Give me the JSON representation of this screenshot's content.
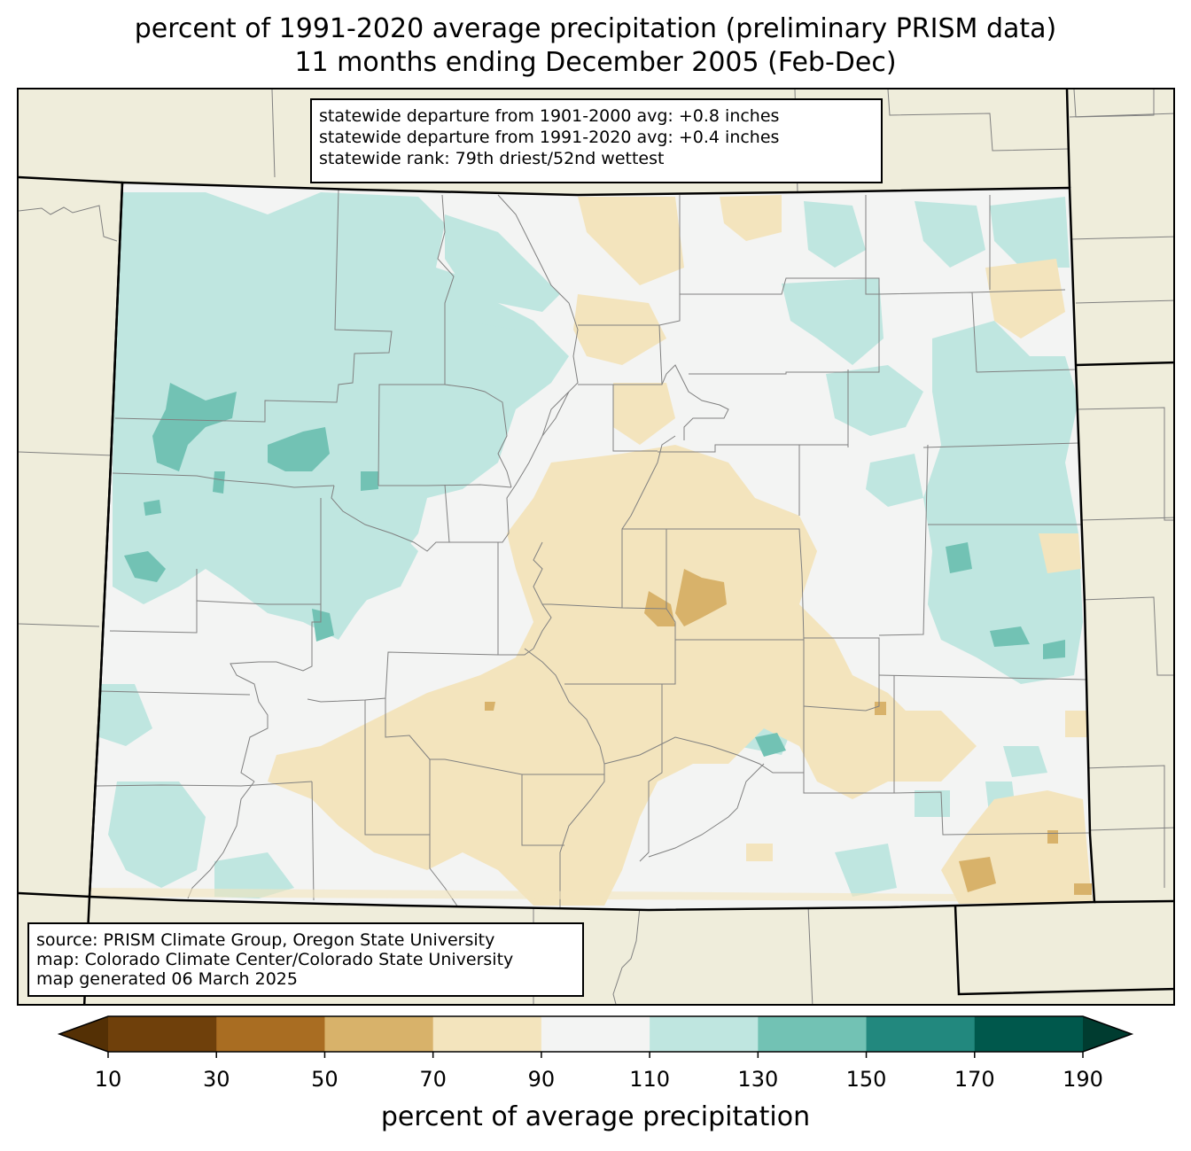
{
  "title_line1": "percent of 1991-2020 average precipitation (preliminary PRISM data)",
  "title_line2": "11 months ending December 2005 (Feb-Dec)",
  "stats": {
    "line1": "statewide departure from 1901-2000 avg: +0.8 inches",
    "line2": "statewide departure from 1991-2020 avg: +0.4 inches",
    "line3": "statewide rank: 79th driest/52nd wettest"
  },
  "source": {
    "line1": "source: PRISM Climate Group, Oregon State University",
    "line2": "map: Colorado Climate Center/Colorado State University",
    "line3": "map generated 06 March 2025"
  },
  "colorbar": {
    "label": "percent of average precipitation",
    "ticks": [
      "10",
      "30",
      "50",
      "70",
      "90",
      "110",
      "130",
      "150",
      "170",
      "190"
    ],
    "colors": [
      "#6f400b",
      "#a96d22",
      "#d8b26a",
      "#f3e4bd",
      "#f3f4f3",
      "#bfe6e0",
      "#72c2b4",
      "#22887e",
      "#00584c"
    ],
    "under_color": "#543005",
    "over_color": "#003c30"
  },
  "map_colors": {
    "land_outside": "#efeddb",
    "near_normal": "#f3f4f3",
    "wet_light": "#bfe6e0",
    "wet_medium": "#72c2b4",
    "dry_light": "#f3e4bd",
    "dry_medium": "#d8b26a",
    "county_lines": "#808080",
    "state_lines": "#000000"
  }
}
